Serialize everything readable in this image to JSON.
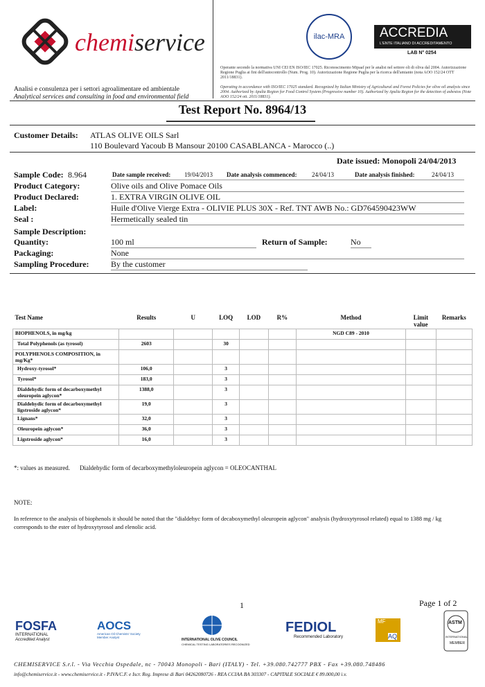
{
  "header": {
    "brand_prefix": "chemi",
    "brand_suffix": "service",
    "tagline_it": "Analisi e consulenza per i settori agroalimentare ed ambientale",
    "tagline_en": "Analytical services and consulting in food and environmental field",
    "ilac": "ilac-MRA",
    "accredia": "ACCREDIA",
    "accredia_sub": "L'ENTE ITALIANO DI ACCREDITAMENTO",
    "lab_no": "LAB N° 0254",
    "accreditation_it": "Operante secondo la normativa UNI CEI EN ISO/IEC 17025. Riconoscimento Mipaaf per le analisi nel settore oli di oliva dal 2004. Autorizzazione Regione Puglia ai fini dell'autocontrollo (Num. Prog. 10). Autorizzazione Regione Puglia per la ricerca dell'amianto (nota AOO 152/24 OTT 2011/18831).",
    "accreditation_en": "Operating in accordance with ISO/IEC 17025 standard. Recognized by Italian Ministry of Agricultural and Forest Policies for olive oil analysis since 2004. Authorized by Apulia Region for Food Control System (Progressive number 10). Authorized by Apulia Region for the detection of asbestos (Note AOO 152/24 ott. 2011/18831)."
  },
  "title": "Test Report No. 8964/13",
  "customer": {
    "label": "Customer Details:",
    "name": "ATLAS OLIVE OILS Sarl",
    "address": "110 Boulevard Yacoub B Mansour  20100  CASABLANCA - Marocco (..)"
  },
  "date_issued": "Date issued: Monopoli 24/04/2013",
  "sample": {
    "code_label": "Sample Code:",
    "code": "8.964",
    "received_label": "Date sample received:",
    "received": "19/04/2013",
    "commenced_label": "Date analysis commenced:",
    "commenced": "24/04/13",
    "finished_label": "Date analysis finished:",
    "finished": "24/04/13",
    "category_label": "Product Category:",
    "category": "Olive oils and Olive Pomace Oils",
    "declared_label": "Product Declared:",
    "declared": "1. EXTRA VIRGIN OLIVE OIL",
    "label_label": "Label:",
    "label": "Huile d'Olive Vierge Extra - OLIVIE PLUS 30X - Ref. TNT AWB No.: GD764590423WW",
    "seal_label": "Seal :",
    "seal": "Hermetically sealed tin",
    "description_label": "Sample Description:",
    "quantity_label": "Quantity:",
    "quantity": "100 ml",
    "return_label": "Return of Sample:",
    "return": "No",
    "packaging_label": "Packaging:",
    "packaging": "None",
    "procedure_label": "Sampling Procedure:",
    "procedure": "By the customer"
  },
  "table": {
    "columns": [
      "Test Name",
      "Results",
      "U",
      "LOQ",
      "LOD",
      "R%",
      "Method",
      "Limit value",
      "Remarks"
    ],
    "rows": [
      {
        "name": "BIOPHENOLS, in mg/kg",
        "method": "NGD C89 - 2010"
      },
      {
        "name": "Total Polyphenols (as tyrosol)",
        "results": "2603",
        "loq": "30"
      },
      {
        "name": "POLYPHENOLS COMPOSITION, in mg/Kg*"
      },
      {
        "name": "Hydroxy-tyrosol*",
        "results": "106,0",
        "loq": "3"
      },
      {
        "name": "Tyrosol*",
        "results": "183,0",
        "loq": "3"
      },
      {
        "name": "Dialdehydic form of decarboxymethyl oleuropein aglycon*",
        "results": "1388,0",
        "loq": "3"
      },
      {
        "name": "Dialdehydic form of decarboxymethyl ligstroside aglycon*",
        "results": "19,0",
        "loq": "3"
      },
      {
        "name": "Lignans*",
        "results": "32,0",
        "loq": "3"
      },
      {
        "name": "Oleuropein aglycon*",
        "results": "36,0",
        "loq": "3"
      },
      {
        "name": "Ligstroside aglycon*",
        "results": "16,0",
        "loq": "3"
      }
    ]
  },
  "footnote": {
    "asterisk": "*: values as measured.",
    "definition": "Dialdehydic form of decarboxymethyloleuropein aglycon = OLEOCANTHAL"
  },
  "note": {
    "title": "NOTE:",
    "text": "In reference to the analysis of biophenols it should be noted that the \"dialdehyc form of decaboxymethyl oleuropein aglycon\" analysis (hydroxytyrosol related) equal to 1388 mg / kg corresponds to the ester of hydroxytyrosol and elenolic acid."
  },
  "page_number": "1",
  "page_of": "Page 1 of 2",
  "logos": {
    "fosfa": "FOSFA",
    "fosfa_sub": "INTERNATIONAL",
    "fosfa_sub2": "Accredited Analyst",
    "aocs": "AOCS",
    "aocs_sub": "American Oil Chemists' Society Member Analyst",
    "ioc": "INTERNATIONAL OLIVE COUNCIL",
    "ioc_sub": "CHEMICAL TESTING LABORATORIES RECOGNIZED",
    "fediol": "FEDIOL",
    "fediol_sub": "Recommended Laboratory",
    "mf": "MF",
    "aq": "AQ",
    "astm": "ASTM",
    "astm_sub": "INTERNATIONAL",
    "astm_sub2": "MEMBER"
  },
  "footer": {
    "line1": "CHEMISERVICE S.r.l. - Via Vecchia Ospedale, nc - 70043 Monopoli - Bari (ITALY) - Tel. +39.080.742777 PBX - Fax +39.080.748486",
    "line2": "info@chemiservice.it - www.chemiservice.it - P.IVA/C.F. e Iscr. Reg. Imprese di Bari 04262080726 - REA CCIAA BA 303307 - CAPITALE SOCIALE € 89.000,00 i.v."
  }
}
